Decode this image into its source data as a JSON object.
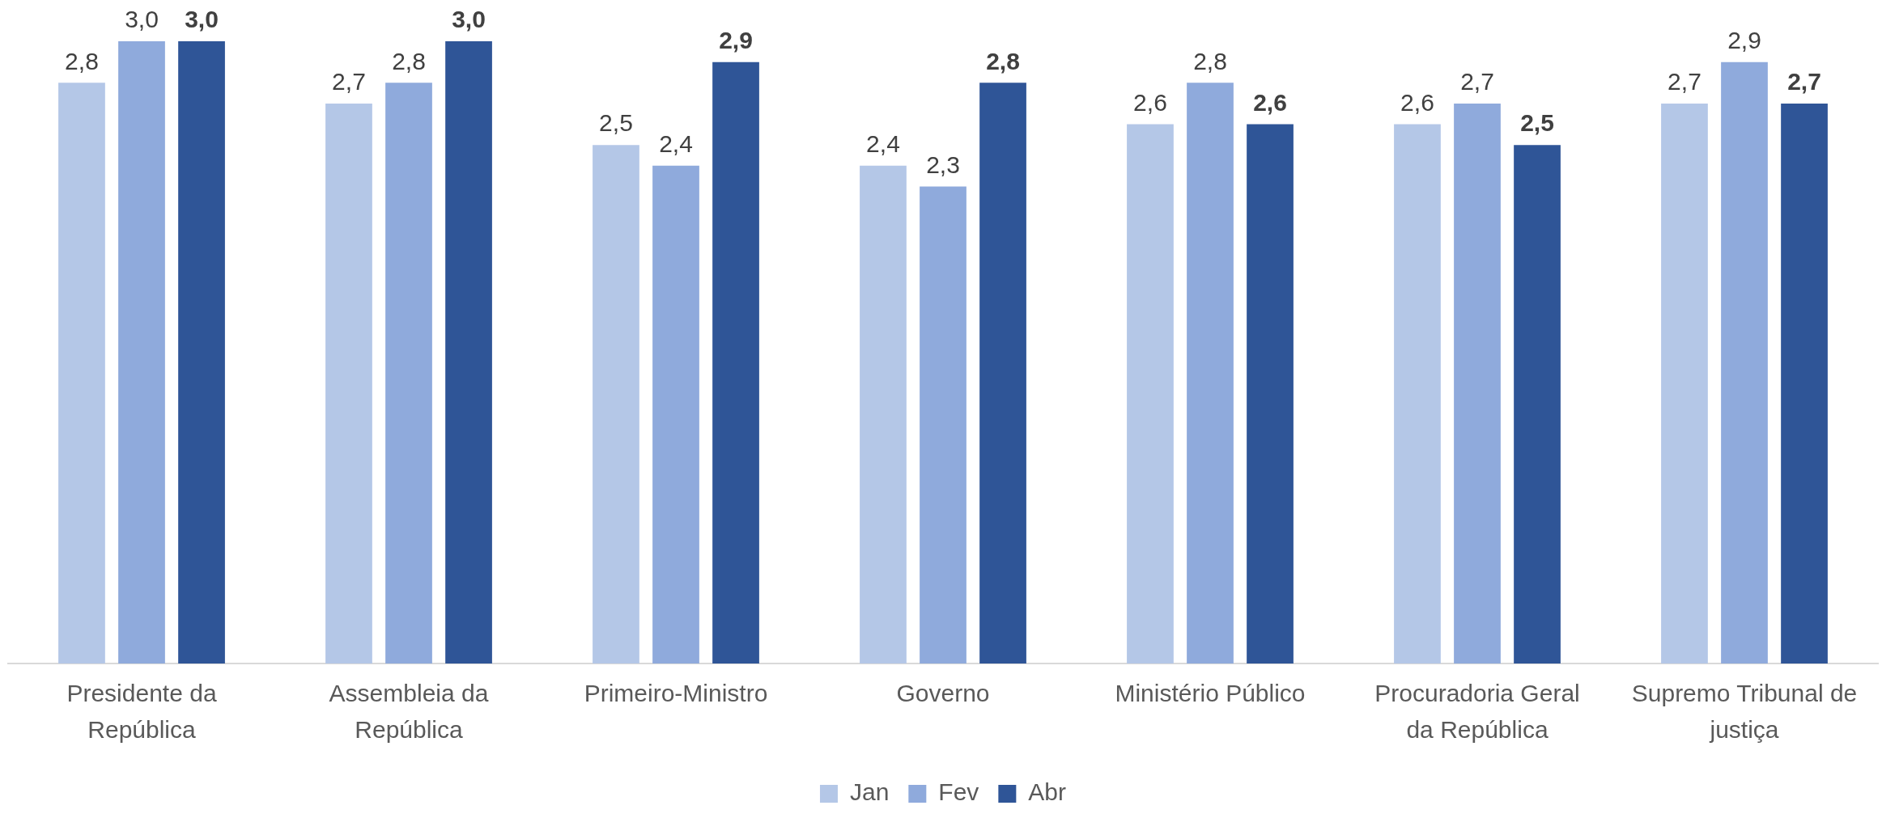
{
  "chart_data": {
    "type": "bar",
    "categories": [
      "Presidente da República",
      "Assembleia da República",
      "Primeiro-Ministro",
      "Governo",
      "Ministério Público",
      "Procuradoria Geral da República",
      "Supremo Tribunal de justiça"
    ],
    "series": [
      {
        "name": "Jan",
        "color": "#b4c7e7",
        "values": [
          2.8,
          2.7,
          2.5,
          2.4,
          2.6,
          2.6,
          2.7
        ],
        "value_labels": [
          "2,8",
          "2,7",
          "2,5",
          "2,4",
          "2,6",
          "2,6",
          "2,7"
        ]
      },
      {
        "name": "Fev",
        "color": "#8faadc",
        "values": [
          3.0,
          2.8,
          2.4,
          2.3,
          2.8,
          2.7,
          2.9
        ],
        "value_labels": [
          "3,0",
          "2,8",
          "2,4",
          "2,3",
          "2,8",
          "2,7",
          "2,9"
        ]
      },
      {
        "name": "Abr",
        "color": "#2f5597",
        "values": [
          3.0,
          3.0,
          2.9,
          2.8,
          2.6,
          2.5,
          2.7
        ],
        "value_labels": [
          "3,0",
          "3,0",
          "2,9",
          "2,8",
          "2,6",
          "2,5",
          "2,7"
        ]
      }
    ],
    "ylim": [
      0,
      3
    ],
    "tick_labels": "x",
    "legend": "bottom"
  }
}
